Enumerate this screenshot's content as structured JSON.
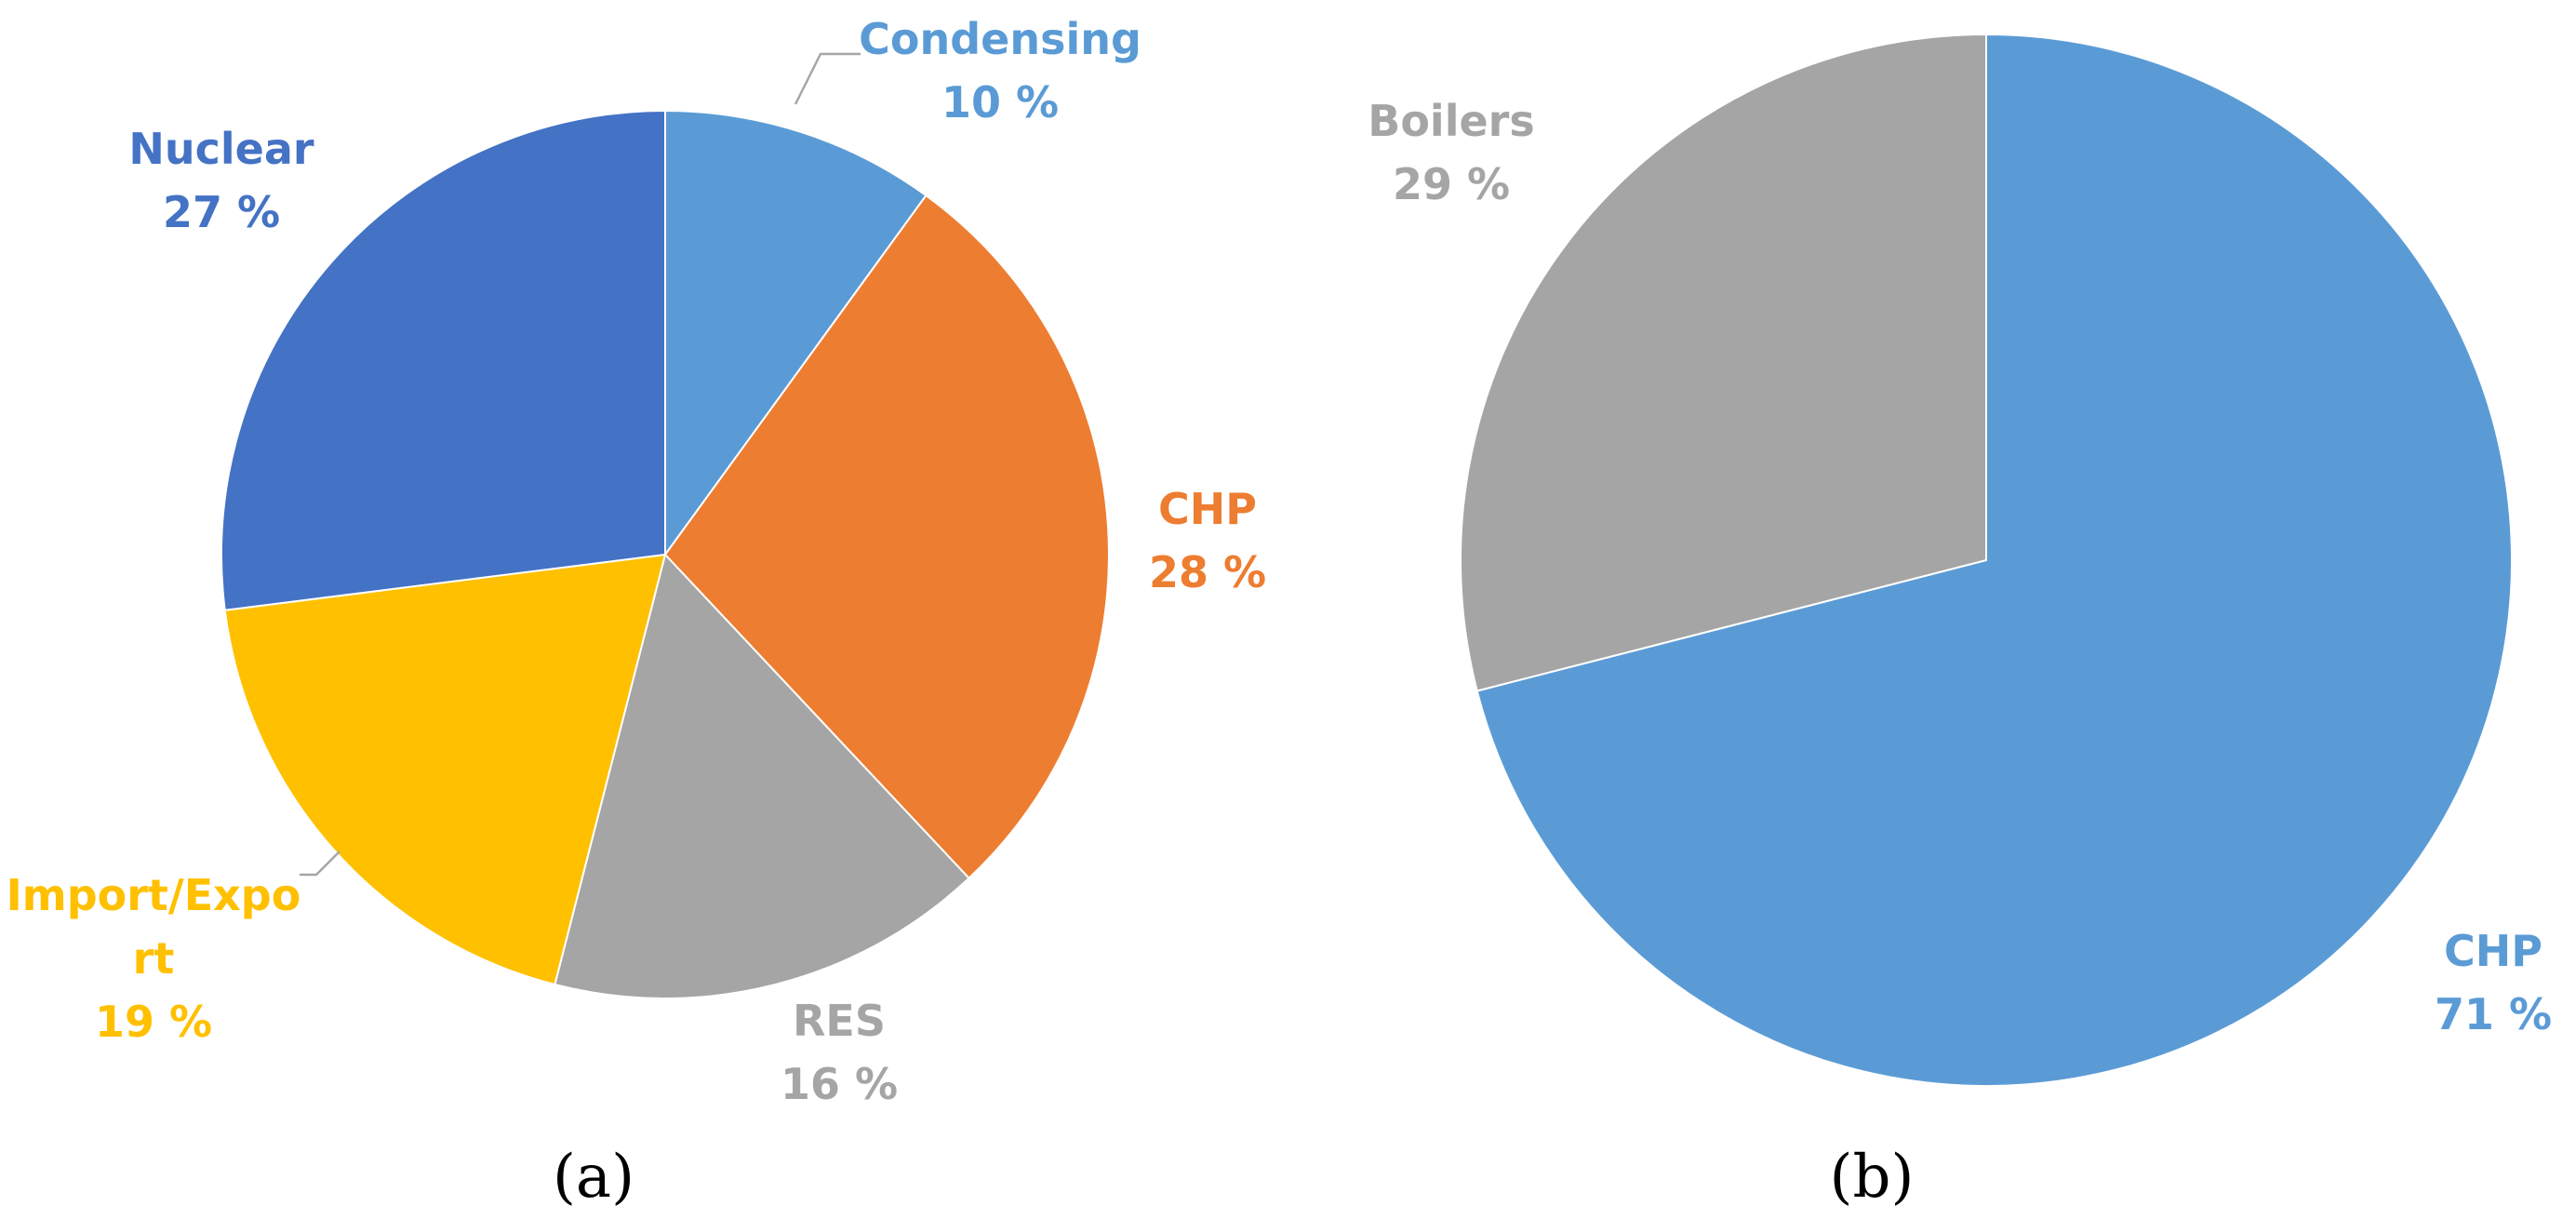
{
  "chart_data": [
    {
      "type": "pie",
      "panel": "(a)",
      "slices": [
        {
          "label": "Condensing",
          "value": 10,
          "value_label": "10 %",
          "color": "#5b9bd5"
        },
        {
          "label": "CHP",
          "value": 28,
          "value_label": "28 %",
          "color": "#ed7d31"
        },
        {
          "label": "RES",
          "value": 16,
          "value_label": "16 %",
          "color": "#a5a5a5"
        },
        {
          "label": "Import/Expo\nrt",
          "value": 19,
          "value_label": "19 %",
          "color": "#ffc000"
        },
        {
          "label": "Nuclear",
          "value": 27,
          "value_label": "27 %",
          "color": "#4472c4"
        }
      ]
    },
    {
      "type": "pie",
      "panel": "(b)",
      "slices": [
        {
          "label": "CHP",
          "value": 71,
          "value_label": "71 %",
          "color": "#5b9bd5"
        },
        {
          "label": "Boilers",
          "value": 29,
          "value_label": "29 %",
          "color": "#a5a5a5"
        }
      ]
    }
  ]
}
